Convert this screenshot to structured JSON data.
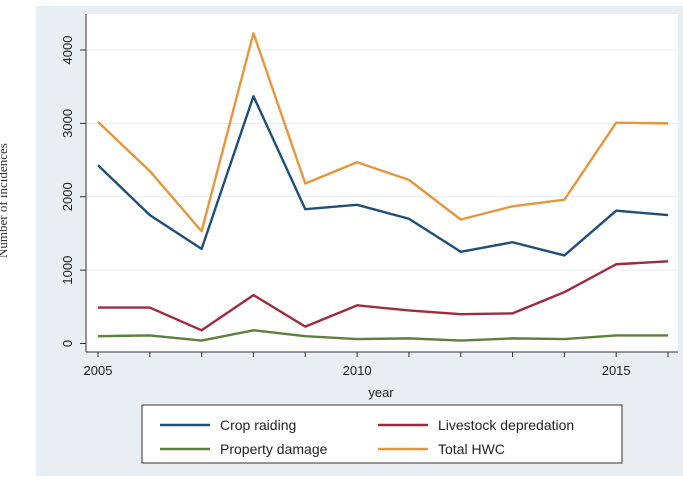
{
  "chart_data": {
    "type": "line",
    "xlabel": "year",
    "ylabel": "Number of incidences",
    "x": [
      2005,
      2006,
      2007,
      2008,
      2009,
      2010,
      2011,
      2012,
      2013,
      2014,
      2015,
      2016
    ],
    "xlim": [
      2005,
      2016
    ],
    "ylim": [
      0,
      4200
    ],
    "xticks": [
      2005,
      2010,
      2015
    ],
    "yticks": [
      0,
      1000,
      2000,
      3000,
      4000
    ],
    "grid": true,
    "legend_position": "bottom",
    "series": [
      {
        "name": "Crop raiding",
        "color": "#1f4e79",
        "values": [
          2430,
          1750,
          1290,
          3370,
          1830,
          1890,
          1700,
          1250,
          1380,
          1200,
          1810,
          1750
        ]
      },
      {
        "name": "Livestock depredation",
        "color": "#9e2b3e",
        "values": [
          490,
          490,
          180,
          660,
          230,
          520,
          450,
          400,
          410,
          700,
          1080,
          1120
        ]
      },
      {
        "name": "Property damage",
        "color": "#5f7f3e",
        "values": [
          100,
          110,
          40,
          180,
          100,
          60,
          70,
          40,
          70,
          60,
          110,
          110
        ]
      },
      {
        "name": "Total HWC",
        "color": "#e8963a",
        "values": [
          3020,
          2350,
          1530,
          4230,
          2180,
          2470,
          2230,
          1690,
          1870,
          1960,
          3010,
          3000
        ]
      }
    ]
  }
}
